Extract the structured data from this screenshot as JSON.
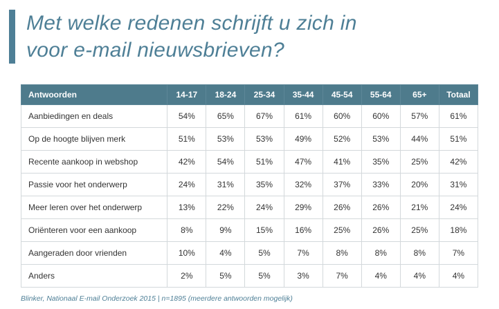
{
  "page": {
    "title_line1": "Met welke redenen schrijft u zich in",
    "title_line2": "voor e-mail nieuwsbrieven?",
    "footer": "Blinker, Nationaal E-mail Onderzoek 2015 | n=1895 (meerdere antwoorden mogelijk)"
  },
  "colors": {
    "accent_teal": "#4e7f96",
    "header_bg": "#4e7b8c",
    "header_text": "#ffffff",
    "body_text": "#333333",
    "border": "#d3d8db"
  },
  "chart_data": {
    "type": "table",
    "title": "Met welke redenen schrijft u zich in voor e-mail nieuwsbrieven?",
    "columns": [
      "Antwoorden",
      "14-17",
      "18-24",
      "25-34",
      "35-44",
      "45-54",
      "55-64",
      "65+",
      "Totaal"
    ],
    "rows": [
      {
        "label": "Aanbiedingen en deals",
        "values": [
          "54%",
          "65%",
          "67%",
          "61%",
          "60%",
          "60%",
          "57%",
          "61%"
        ]
      },
      {
        "label": "Op de hoogte blijven merk",
        "values": [
          "51%",
          "53%",
          "53%",
          "49%",
          "52%",
          "53%",
          "44%",
          "51%"
        ]
      },
      {
        "label": "Recente aankoop in webshop",
        "values": [
          "42%",
          "54%",
          "51%",
          "47%",
          "41%",
          "35%",
          "25%",
          "42%"
        ]
      },
      {
        "label": "Passie voor het onderwerp",
        "values": [
          "24%",
          "31%",
          "35%",
          "32%",
          "37%",
          "33%",
          "20%",
          "31%"
        ]
      },
      {
        "label": "Meer leren over het onderwerp",
        "values": [
          "13%",
          "22%",
          "24%",
          "29%",
          "26%",
          "26%",
          "21%",
          "24%"
        ]
      },
      {
        "label": "Oriënteren voor een aankoop",
        "values": [
          "8%",
          "9%",
          "15%",
          "16%",
          "25%",
          "26%",
          "25%",
          "18%"
        ]
      },
      {
        "label": "Aangeraden door vrienden",
        "values": [
          "10%",
          "4%",
          "5%",
          "7%",
          "8%",
          "8%",
          "8%",
          "7%"
        ]
      },
      {
        "label": "Anders",
        "values": [
          "2%",
          "5%",
          "5%",
          "3%",
          "7%",
          "4%",
          "4%",
          "4%"
        ]
      }
    ],
    "source": "Blinker, Nationaal E-mail Onderzoek 2015 | n=1895 (meerdere antwoorden mogelijk)",
    "legend_position": "none",
    "grid": true
  }
}
